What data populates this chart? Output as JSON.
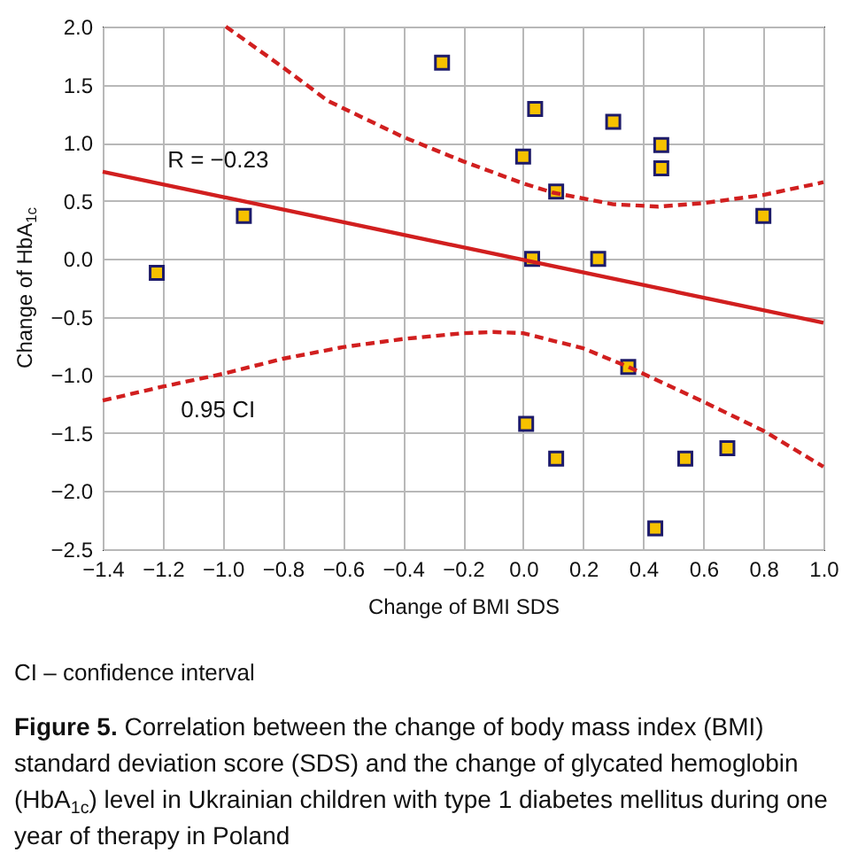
{
  "chart_data": {
    "type": "scatter",
    "title": "Figure 5. Correlation between the change of body mass index (BMI) standard deviation score (SDS) and the change of glycated hemoglobin (HbA$_{1c}$) level in Ukrainian children with type 1 diabetes mellitus during one year of therapy in Poland",
    "xlabel": "Change of BMI SDS",
    "ylabel": "Change of HbA$_{1c}$",
    "annotations": [
      "CI – confidence interval"
    ],
    "xlim": [
      -1.4,
      1.0
    ],
    "ylim": [
      -2.5,
      2.0
    ],
    "xticks": [
      -1.4,
      -1.2,
      {
        "value": -1.0,
        "label": "−1.0"
      },
      -0.8,
      -0.6,
      -0.4,
      -0.2,
      {
        "value": 0.0,
        "label": "0.0"
      },
      0.2,
      0.4,
      0.6,
      0.8,
      {
        "value": 1.0,
        "label": "1.0"
      }
    ],
    "yticks": [
      -2.5,
      {
        "value": -2.0,
        "label": "−2.0"
      },
      -1.5,
      {
        "value": -1.0,
        "label": "−1.0"
      },
      -0.5,
      {
        "value": 0.0,
        "label": "0.0"
      },
      0.5,
      {
        "value": 1.0,
        "label": "1.0"
      },
      1.5,
      {
        "value": 2.0,
        "label": "2.0"
      }
    ],
    "grid": true,
    "series": [
      {
        "marker": "square",
        "color": "#f6c100",
        "x": [
          -1.22,
          -0.93,
          -0.27,
          0.04,
          0.0,
          0.11,
          0.3,
          0.46,
          0.46,
          0.8,
          0.03,
          0.25,
          0.35,
          0.01,
          0.11,
          0.54,
          0.68,
          0.44
        ],
        "values": [
          -0.12,
          0.37,
          1.69,
          1.29,
          0.88,
          0.58,
          1.18,
          0.98,
          0.78,
          0.37,
          0.0,
          0.0,
          -0.93,
          -1.42,
          -1.72,
          -1.72,
          -1.63,
          -2.32
        ]
      },
      {
        "type": "line",
        "name": "R = −0.23",
        "line_style": "solid",
        "color": "#d11f1f",
        "x": [
          -1.4,
          1.0
        ],
        "values": [
          0.75,
          -0.55
        ]
      },
      {
        "type": "line",
        "line_style": "dashed",
        "color": "#d11f1f",
        "x": [
          -0.99,
          -0.8,
          -0.65,
          -0.4,
          -0.2,
          0.0,
          0.1,
          0.3,
          0.45,
          0.6,
          0.8,
          1.0
        ],
        "values": [
          2.0,
          1.65,
          1.36,
          1.05,
          0.84,
          0.65,
          0.57,
          0.47,
          0.45,
          0.48,
          0.55,
          0.66
        ]
      },
      {
        "type": "line",
        "name": "0.95 CI",
        "line_style": "dashed",
        "color": "#d11f1f",
        "x": [
          -1.4,
          -1.2,
          -1.0,
          -0.8,
          -0.6,
          -0.4,
          -0.2,
          -0.1,
          0.0,
          0.2,
          0.35,
          0.6,
          0.8,
          1.0
        ],
        "values": [
          -1.22,
          -1.1,
          -0.99,
          -0.86,
          -0.76,
          -0.69,
          -0.64,
          -0.63,
          -0.64,
          -0.77,
          -0.93,
          -1.23,
          -1.48,
          -1.79
        ]
      }
    ]
  }
}
